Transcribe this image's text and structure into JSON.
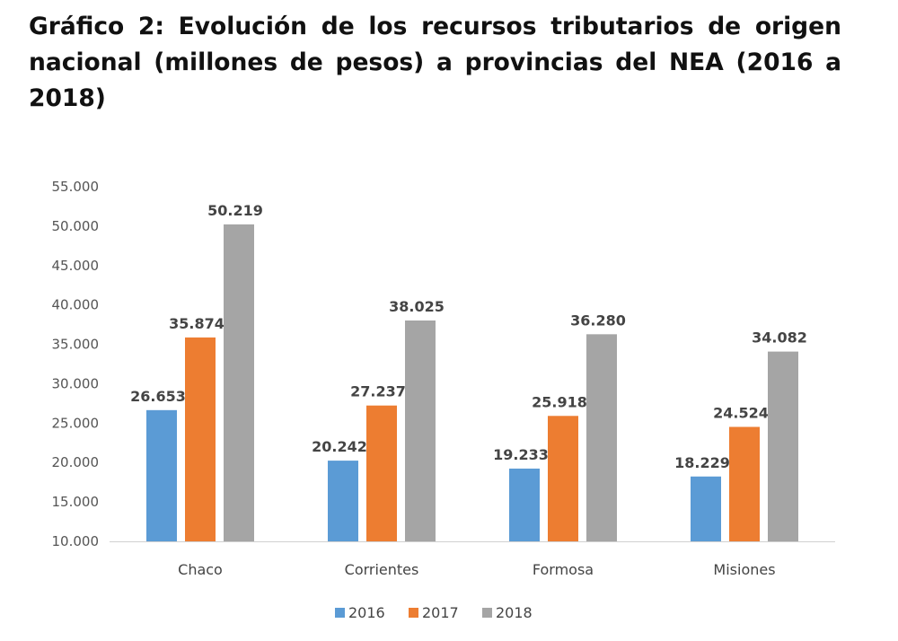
{
  "chart_data": {
    "type": "bar",
    "title": "Gráfico 2: Evolución de los recursos tributarios de origen nacional (millones de pesos) a provincias del NEA (2016 a 2018)",
    "xlabel": "",
    "ylabel": "",
    "ylim": [
      10000,
      55000
    ],
    "yticks": [
      10000,
      15000,
      20000,
      25000,
      30000,
      35000,
      40000,
      45000,
      50000,
      55000
    ],
    "ytick_labels": [
      "10.000",
      "15.000",
      "20.000",
      "25.000",
      "30.000",
      "35.000",
      "40.000",
      "45.000",
      "50.000",
      "55.000"
    ],
    "grid": false,
    "legend_position": "bottom",
    "categories": [
      "Chaco",
      "Corrientes",
      "Formosa",
      "Misiones"
    ],
    "series": [
      {
        "name": "2016",
        "color": "#5b9bd5",
        "values": [
          26653,
          20242,
          19233,
          18229
        ],
        "labels": [
          "26.653",
          "20.242",
          "19.233",
          "18.229"
        ]
      },
      {
        "name": "2017",
        "color": "#ed7d31",
        "values": [
          35874,
          27237,
          25918,
          24524
        ],
        "labels": [
          "35.874",
          "27.237",
          "25.918",
          "24.524"
        ]
      },
      {
        "name": "2018",
        "color": "#a5a5a5",
        "values": [
          50219,
          38025,
          36280,
          34082
        ],
        "labels": [
          "50.219",
          "38.025",
          "36.280",
          "34.082"
        ]
      }
    ]
  }
}
